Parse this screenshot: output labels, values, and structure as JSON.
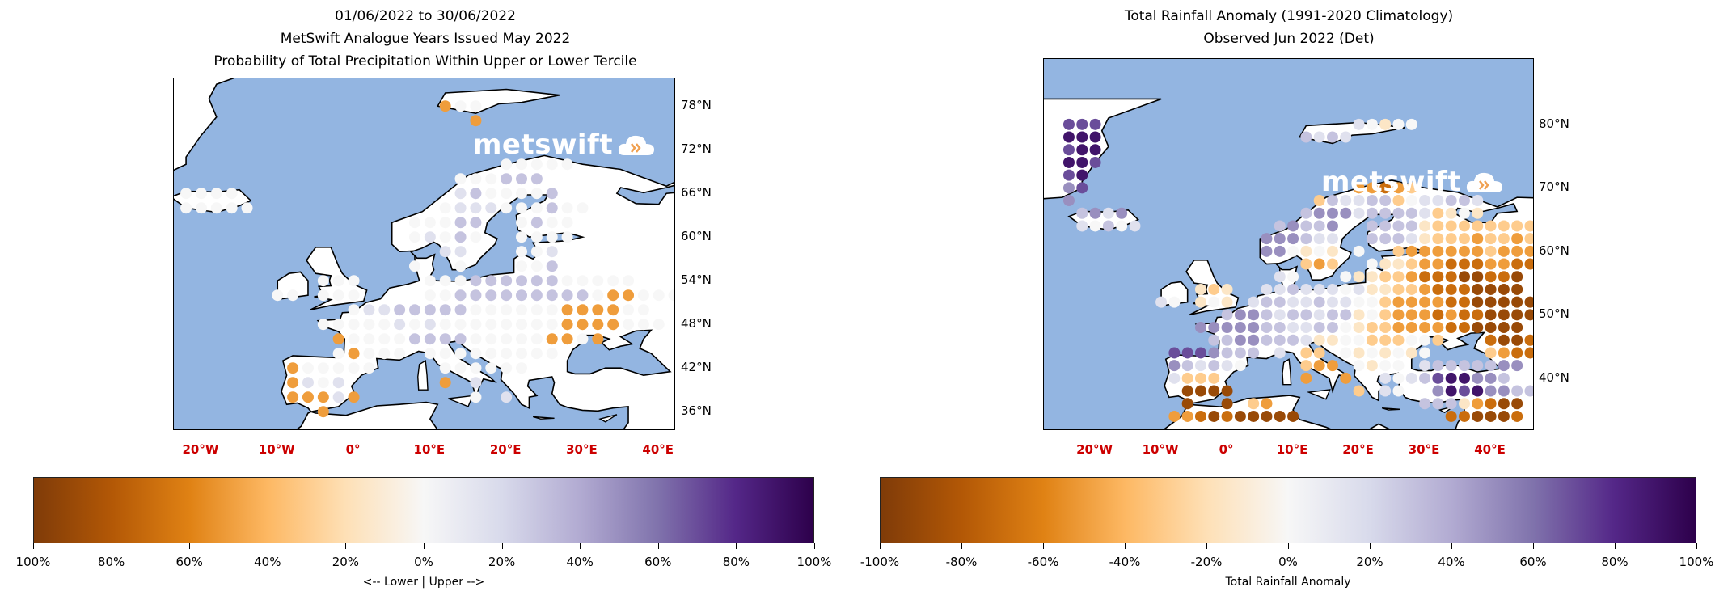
{
  "left_panel": {
    "title_lines": [
      "01/06/2022 to 30/06/2022",
      "MetSwift Analogue Years Issued May 2022",
      "Probability of Total Precipitation Within Upper or Lower Tercile"
    ],
    "logo_text": "metswift",
    "lat_labels": [
      {
        "value": 78,
        "text": "78°N"
      },
      {
        "value": 72,
        "text": "72°N"
      },
      {
        "value": 66,
        "text": "66°N"
      },
      {
        "value": 60,
        "text": "60°N"
      },
      {
        "value": 54,
        "text": "54°N"
      },
      {
        "value": 48,
        "text": "48°N"
      },
      {
        "value": 42,
        "text": "42°N"
      },
      {
        "value": 36,
        "text": "36°N"
      }
    ],
    "lon_labels": [
      {
        "value": -20,
        "text": "20°W"
      },
      {
        "value": -10,
        "text": "10°W"
      },
      {
        "value": 0,
        "text": "0°"
      },
      {
        "value": 10,
        "text": "10°E"
      },
      {
        "value": 20,
        "text": "20°E"
      },
      {
        "value": 30,
        "text": "30°E"
      },
      {
        "value": 40,
        "text": "40°E"
      }
    ],
    "colorbar": {
      "ticks": [
        "100%",
        "80%",
        "60%",
        "40%",
        "20%",
        "0%",
        "20%",
        "40%",
        "60%",
        "80%",
        "100%"
      ],
      "label": "<-- Lower | Upper -->"
    },
    "grid": {
      "lon_start": -24,
      "lat_start": 80,
      "step": 2,
      "rows": [
        "....................................",
        "..................C00...............",
        "....................C...............",
        "....................................",
        "....................................",
        "......................00000.........",
        "...................000222...........",
        ".0000..............1200002..........",
        ".00000............0111000200........",
        "................00022..0200.........",
        "................01020..0000.........",
        "..................11...001..........",
        "................0..0...002..........",
        "..........000....00022222200000.....",
        ".......00.000....002222222220CC000..",
        "............01122222000000CCCC00....",
        "..........0000010100000000CCCC000...",
        "...........C0000222200000CC0C.......",
        "...........0C000.000000000..........",
        "........C00000....000000............",
        "........C101......C.1...............",
        "........CCC1C.......0.1.............",
        "..........C........................."
      ]
    }
  },
  "right_panel": {
    "title_lines": [
      "Total Rainfall Anomaly (1991-2020 Climatology)",
      "Observed Jun 2022 (Det)"
    ],
    "logo_text": "metswift",
    "lat_labels": [
      {
        "value": 80,
        "text": "80°N"
      },
      {
        "value": 70,
        "text": "70°N"
      },
      {
        "value": 60,
        "text": "60°N"
      },
      {
        "value": 50,
        "text": "50°N"
      },
      {
        "value": 40,
        "text": "40°N"
      }
    ],
    "lon_labels": [
      {
        "value": -20,
        "text": "20°W"
      },
      {
        "value": -10,
        "text": "10°W"
      },
      {
        "value": 0,
        "text": "0°"
      },
      {
        "value": 10,
        "text": "10°E"
      },
      {
        "value": 20,
        "text": "20°E"
      },
      {
        "value": 30,
        "text": "30°E"
      },
      {
        "value": 40,
        "text": "40°E"
      }
    ],
    "colorbar": {
      "ticks": [
        "-100%",
        "-80%",
        "-60%",
        "-40%",
        "-20%",
        "0%",
        "20%",
        "40%",
        "60%",
        "80%",
        "100%"
      ],
      "label": "Total Rainfall Anomaly"
    },
    "grid": {
      "lon_start": -24,
      "lat_start": 82,
      "step": 2,
      "rows": [
        "....................................",
        "444...................10E00.........",
        "555...............2121..............",
        "455.................................",
        "554.................................",
        "45..................................",
        "34....................CCBCD.........",
        "3..................D21122D011221....",
        ".2313.............2333122221DE0E....",
        ".10201..........23223..2222EDDDDDDDD",
        "...............333211..2221EDDDCDDCD",
        "...............330E0E.0..DCCCCCCDCCC",
        "..................DCD..0EEDCCBBBCCBB",
        "................10...0EEDDCBBBAABBA",
        "..........EDE..11211101EEDDCBBBAAAA",
        ".......10.E0E.1221121100DCCCCBBAAAAA",
        "............2332122122E0DCCCBCBBAAAA",
        "..........333332211220EDDCCCCBBAAAA",
        "...........22332221EE00DDD00D...BAAB",
        "........4443222.1.DD.0E0E0E0....DCBB",
        "........321210....DCC.0E00.12222233.",
        "........1DDD......C..C..1012455332..",
        ".........AAAA.........D.10..35453322",
        ".........A..A.DC...........222ECBAA",
        "........CCBABAAAAA...........BBAAAB"
      ]
    }
  },
  "legend_codes": {
    "A": -90,
    "B": -70,
    "C": -50,
    "D": -30,
    "E": -15,
    "0": 0,
    "1": 15,
    "2": 30,
    "3": 50,
    "4": 70,
    "5": 90
  },
  "colors": {
    "ocean": "#93b5e1",
    "land": "#ffffff",
    "coast": "#000000",
    "lon_label": "#cc0000",
    "colormap": [
      "#7f3b08",
      "#b35806",
      "#e08214",
      "#fdb863",
      "#fee0b6",
      "#f7f7f7",
      "#d8daeb",
      "#b2abd2",
      "#8073ac",
      "#542788",
      "#2d004b"
    ],
    "logo_accent": "#f0a050"
  }
}
